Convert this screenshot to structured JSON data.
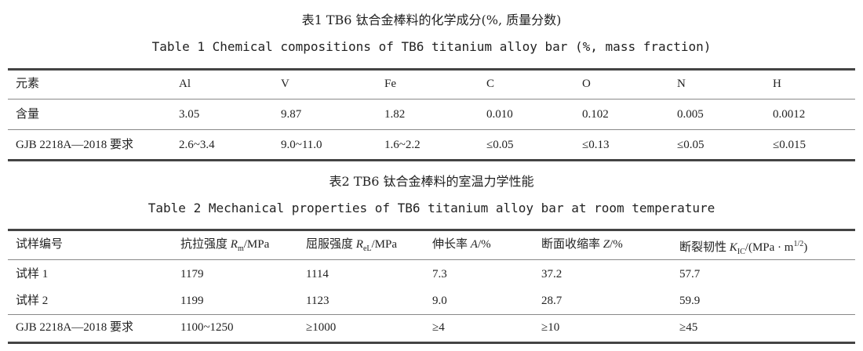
{
  "table1": {
    "caption_cn": "表1 TB6 钛合金棒料的化学成分(%, 质量分数)",
    "caption_en": "Table 1 Chemical compositions of TB6 titanium alloy bar (%, mass fraction)",
    "header": [
      "元素",
      "Al",
      "V",
      "Fe",
      "C",
      "O",
      "N",
      "H"
    ],
    "rows": [
      [
        "含量",
        "3.05",
        "9.87",
        "1.82",
        "0.010",
        "0.102",
        "0.005",
        "0.0012"
      ],
      [
        "GJB 2218A—2018 要求",
        "2.6~3.4",
        "9.0~11.0",
        "1.6~2.2",
        "≤0.05",
        "≤0.13",
        "≤0.05",
        "≤0.015"
      ]
    ]
  },
  "table2": {
    "caption_cn": "表2 TB6 钛合金棒料的室温力学性能",
    "caption_en": "Table 2 Mechanical properties of TB6 titanium alloy bar at room temperature",
    "header": [
      {
        "pre": "试样编号"
      },
      {
        "pre": "抗拉强度 ",
        "var": "R",
        "sub": "m",
        "post": "/MPa"
      },
      {
        "pre": "屈服强度 ",
        "var": "R",
        "sub": "eL",
        "post": "/MPa"
      },
      {
        "pre": "伸长率 ",
        "var": "A",
        "post": "/%"
      },
      {
        "pre": "断面收缩率 ",
        "var": "Z",
        "post": "/%"
      },
      {
        "pre": "断裂韧性 ",
        "var": "K",
        "sub": "IC",
        "post": "/(MPa · m",
        "sup": "1/2",
        "end": ")"
      }
    ],
    "rows": [
      [
        "试样 1",
        "1179",
        "1114",
        "7.3",
        "37.2",
        "57.7"
      ],
      [
        "试样 2",
        "1199",
        "1123",
        "9.0",
        "28.7",
        "59.9"
      ],
      [
        "GJB 2218A—2018 要求",
        "1100~1250",
        "≥1000",
        "≥4",
        "≥10",
        "≥45"
      ]
    ]
  }
}
